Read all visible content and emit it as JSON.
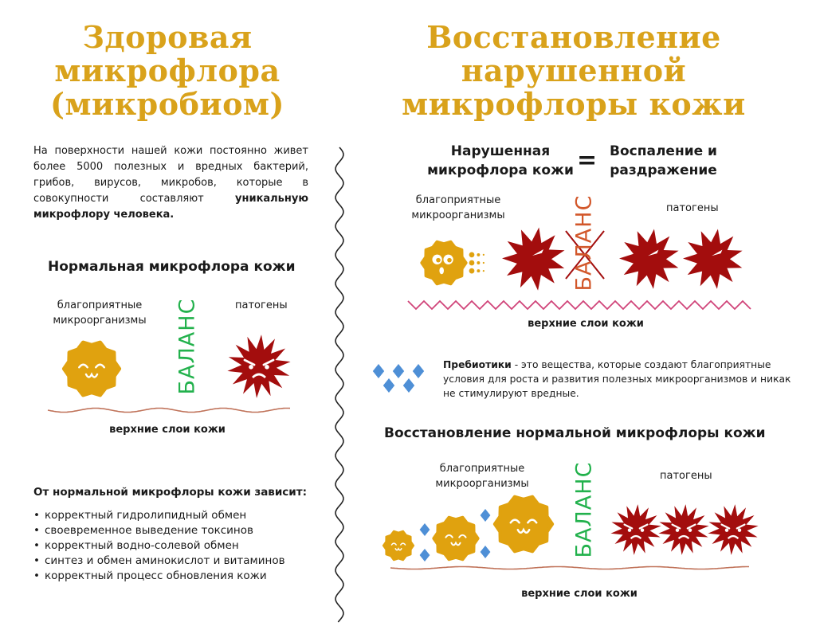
{
  "left": {
    "title": [
      "Здоровая",
      "микрофлора",
      "(микробиом)"
    ],
    "intro_text": "На поверхности нашей кожи постоянно живет более 5000 полезных и вредных бактерий, грибов, вирусов, микробов, которые в совокупности составляют ",
    "intro_bold": "уникальную микрофлору человека.",
    "normal_heading": "Нормальная микрофлора кожи",
    "beneficial_label": "благоприятные микроорганизмы",
    "balance_label": "БАЛАНС",
    "pathogens_label": "патогены",
    "skin_label": "верхние слои кожи",
    "depends_heading": "От нормальной микрофлоры кожи зависит:",
    "depends_items": [
      "корректный гидролипидный обмен",
      "своевременное выведение токсинов",
      "корректный водно-солевой обмен",
      "синтез и обмен аминокислот и витаминов",
      "корректный процесс обновления кожи"
    ]
  },
  "right": {
    "title": [
      "Восстановление",
      "нарушенной",
      "микрофлоры кожи"
    ],
    "equation_left": "Нарушенная микрофлора кожи",
    "equation_sign": "=",
    "equation_right": "Воспаление и раздражение",
    "disturbed": {
      "beneficial_label": "благоприятные микроорганизмы",
      "balance_label": "БАЛАНС",
      "pathogens_label": "патогены",
      "skin_label": "верхние слои кожи"
    },
    "prebiotics_bold": "Пребиотики",
    "prebiotics_text": " - это вещества, которые создают благоприятные условия для роста и развития полезных микроорганизмов и никак не стимулируют вредные.",
    "restore_heading": "Восстановление нормальной микрофлоры кожи",
    "restored": {
      "beneficial_label": "благоприятные микроорганизмы",
      "balance_label": "БАЛАНС",
      "pathogens_label": "патогены",
      "skin_label": "верхние слои кожи"
    }
  },
  "colors": {
    "title_gold": "#D9A21B",
    "beneficial": "#E0A20F",
    "pathogen": "#A30D0D",
    "balance_ok": "#22B14C",
    "balance_broken": "#D2572A",
    "prebiotic": "#4E8FD6",
    "skin_normal": "#C0735A",
    "skin_disturbed": "#D0457A"
  }
}
